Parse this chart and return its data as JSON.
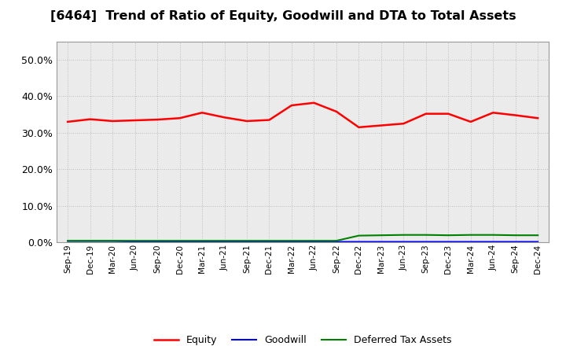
{
  "title": "[6464]  Trend of Ratio of Equity, Goodwill and DTA to Total Assets",
  "x_labels": [
    "Sep-19",
    "Dec-19",
    "Mar-20",
    "Jun-20",
    "Sep-20",
    "Dec-20",
    "Mar-21",
    "Jun-21",
    "Sep-21",
    "Dec-21",
    "Mar-22",
    "Jun-22",
    "Sep-22",
    "Dec-22",
    "Mar-23",
    "Jun-23",
    "Sep-23",
    "Dec-23",
    "Mar-24",
    "Jun-24",
    "Sep-24",
    "Dec-24"
  ],
  "equity": [
    0.33,
    0.337,
    0.332,
    0.334,
    0.336,
    0.34,
    0.355,
    0.342,
    0.332,
    0.335,
    0.375,
    0.382,
    0.358,
    0.315,
    0.32,
    0.325,
    0.352,
    0.352,
    0.33,
    0.355,
    0.348,
    0.34
  ],
  "goodwill": [
    0.003,
    0.003,
    0.003,
    0.002,
    0.002,
    0.002,
    0.002,
    0.002,
    0.001,
    0.001,
    0.001,
    0.001,
    0.001,
    0.001,
    0.001,
    0.001,
    0.001,
    0.001,
    0.001,
    0.001,
    0.001,
    0.001
  ],
  "dta": [
    0.004,
    0.004,
    0.004,
    0.004,
    0.004,
    0.004,
    0.004,
    0.004,
    0.004,
    0.004,
    0.004,
    0.004,
    0.004,
    0.018,
    0.019,
    0.02,
    0.02,
    0.019,
    0.02,
    0.02,
    0.019,
    0.019
  ],
  "equity_color": "#FF0000",
  "goodwill_color": "#0000FF",
  "dta_color": "#008000",
  "ylim": [
    0.0,
    0.55
  ],
  "yticks": [
    0.0,
    0.1,
    0.2,
    0.3,
    0.4,
    0.5
  ],
  "background_color": "#FFFFFF",
  "plot_bg_color": "#EBEBEB",
  "grid_color": "#BBBBBB",
  "title_fontsize": 11.5
}
